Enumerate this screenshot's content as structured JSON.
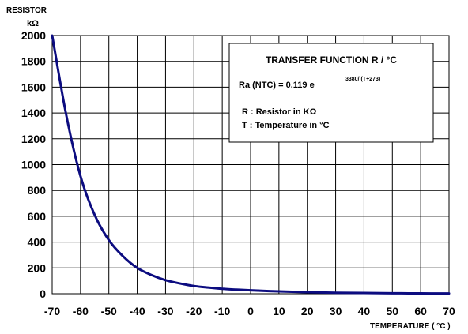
{
  "chart_data": {
    "type": "line",
    "xlabel": "TEMPERATURE  ( °C )",
    "ylabel": "RESISTOR",
    "yunit": "kΩ",
    "xlim": [
      -70,
      70
    ],
    "ylim": [
      0,
      2000
    ],
    "x_ticks": [
      "-70",
      "-60",
      "-50",
      "-40",
      "-30",
      "-20",
      "-10",
      "0",
      "10",
      "20",
      "30",
      "40",
      "50",
      "60",
      "70"
    ],
    "y_ticks": [
      "0",
      "200",
      "400",
      "600",
      "800",
      "1000",
      "1200",
      "1400",
      "1600",
      "1800",
      "2000"
    ],
    "grid": true,
    "series": [
      {
        "color": "#0c0c80",
        "x": [
          -70,
          -65,
          -60,
          -55,
          -50,
          -45,
          -40,
          -35,
          -30,
          -25,
          -20,
          -15,
          -10,
          -5,
          0,
          10,
          20,
          30,
          40,
          50,
          60,
          70
        ],
        "y": [
          2000,
          1380,
          910,
          610,
          415,
          290,
          200,
          145,
          105,
          80,
          60,
          48,
          38,
          32,
          27,
          18,
          12,
          8,
          6,
          4,
          3,
          2
        ]
      }
    ],
    "annotation": {
      "title": "TRANSFER  FUNCTION  R  /  °C",
      "formula_prefix": "Ra (NTC)   =  0.119 e",
      "formula_exponent": "3380/ (T+273)",
      "legend_r": "R   : Resistor in KΩ",
      "legend_t": "T   : Temperature in °C"
    }
  }
}
